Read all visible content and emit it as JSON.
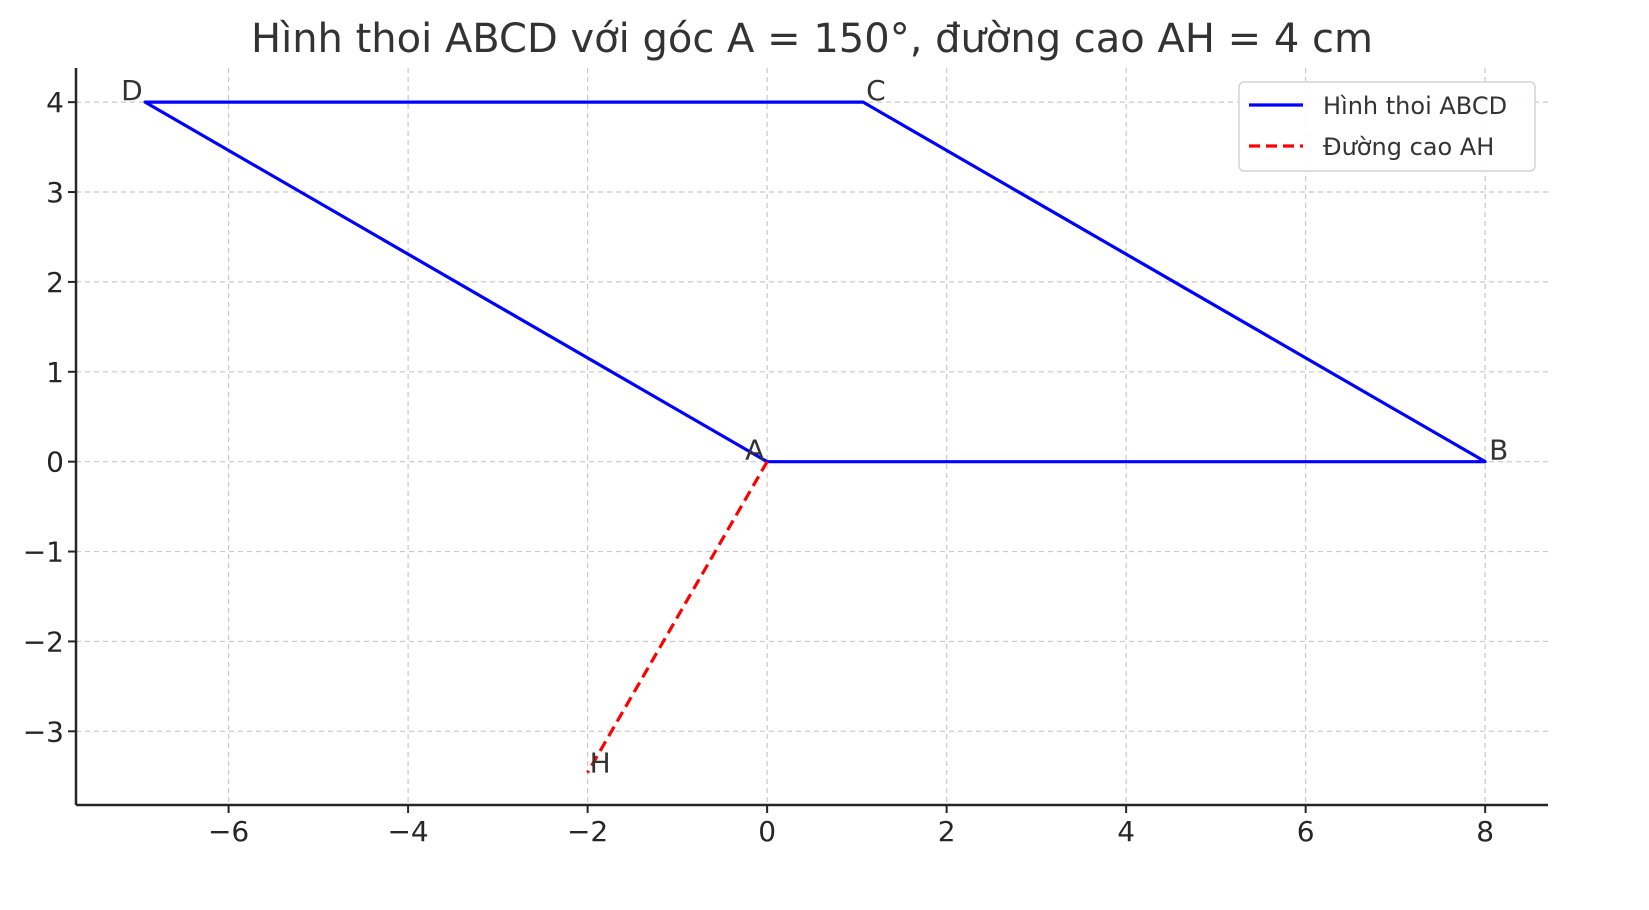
{
  "chart_data": {
    "type": "line",
    "title": "Hình thoi ABCD với góc A = 150°, đường cao AH = 4 cm",
    "xlabel": "",
    "ylabel": "",
    "xlim": [
      -7.7,
      8.7
    ],
    "ylim": [
      -3.82,
      4.38
    ],
    "xticks": [
      -6,
      -4,
      -2,
      0,
      2,
      4,
      6,
      8
    ],
    "yticks": [
      -3,
      -2,
      -1,
      0,
      1,
      2,
      3,
      4
    ],
    "grid": true,
    "legend_position": "top-right",
    "series": [
      {
        "name": "Hình thoi ABCD",
        "color": "#0000ff",
        "style": "solid",
        "points": [
          [
            0,
            0
          ],
          [
            8,
            0
          ],
          [
            1.07,
            4
          ],
          [
            -6.93,
            4
          ],
          [
            0,
            0
          ]
        ]
      },
      {
        "name": "Đường cao AH",
        "color": "#ff0000",
        "style": "dashed",
        "points": [
          [
            0,
            0
          ],
          [
            -2,
            -3.46
          ]
        ]
      }
    ],
    "point_labels": [
      {
        "text": "A",
        "x": 0,
        "y": 0
      },
      {
        "text": "B",
        "x": 8,
        "y": 0
      },
      {
        "text": "C",
        "x": 1.07,
        "y": 4
      },
      {
        "text": "D",
        "x": -6.93,
        "y": 4
      },
      {
        "text": "H",
        "x": -2,
        "y": -3.46
      }
    ]
  }
}
